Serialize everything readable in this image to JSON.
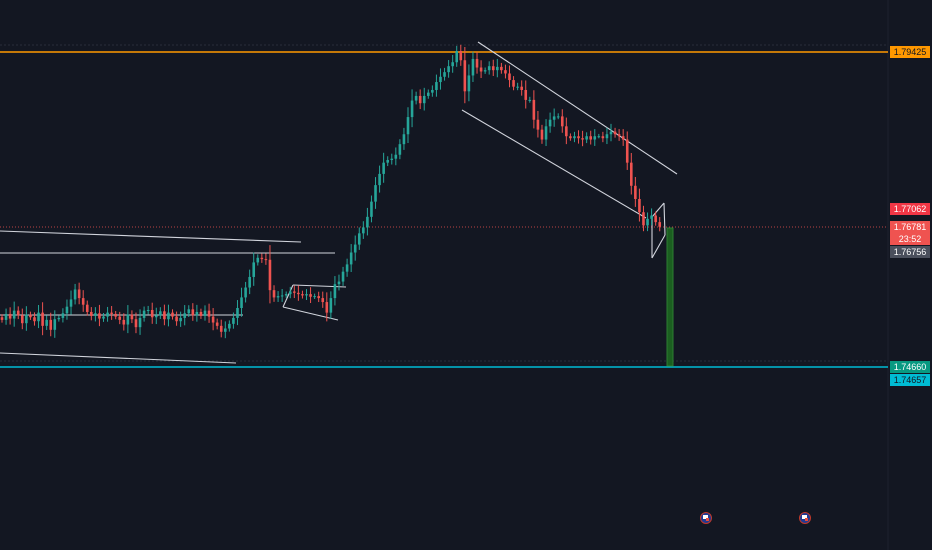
{
  "chart_data": {
    "type": "candlestick",
    "symbol_note": "",
    "ylim": [
      1.7385,
      1.7965
    ],
    "colors": {
      "background": "#131722",
      "up": "#26a69a",
      "down": "#ef5350",
      "resistance": "#ff9800",
      "support": "#00bcd4",
      "trendline": "#ffffff",
      "current_line": "#ef5350",
      "target_bar": "#1b5e20"
    },
    "levels": {
      "resistance": 1.79425,
      "support": 1.74657,
      "target": 1.7466,
      "prev_level": 1.77062,
      "current": 1.76781,
      "low_marker": 1.76756
    },
    "price_labels": [
      {
        "id": "resistance",
        "value": "1.79425",
        "bg": "#ff9800",
        "color": "#131722"
      },
      {
        "id": "prev",
        "value": "1.77062",
        "bg": "#f23645",
        "color": "#ffffff"
      },
      {
        "id": "current",
        "value": "1.76781",
        "sub": "23:52",
        "bg": "#ef5350",
        "color": "#ffffff"
      },
      {
        "id": "low",
        "value": "1.76756",
        "bg": "#4a4f5c",
        "color": "#ffffff"
      },
      {
        "id": "target",
        "value": "1.74660",
        "bg": "#089981",
        "color": "#ffffff"
      },
      {
        "id": "support",
        "value": "1.74657",
        "bg": "#00bcd4",
        "color": "#131722"
      }
    ],
    "closes": [
      1.7537,
      1.7546,
      1.7539,
      1.7551,
      1.7544,
      1.7532,
      1.7545,
      1.7541,
      1.7535,
      1.7548,
      1.7528,
      1.7537,
      1.7522,
      1.7538,
      1.754,
      1.7547,
      1.7557,
      1.7568,
      1.7583,
      1.757,
      1.756,
      1.7549,
      1.7543,
      1.7547,
      1.7539,
      1.7542,
      1.7548,
      1.7546,
      1.7542,
      1.7537,
      1.753,
      1.7545,
      1.7538,
      1.7526,
      1.754,
      1.7551,
      1.7552,
      1.7541,
      1.7544,
      1.755,
      1.7538,
      1.7548,
      1.7542,
      1.7535,
      1.754,
      1.7547,
      1.7553,
      1.7544,
      1.7549,
      1.7543,
      1.7551,
      1.7542,
      1.7533,
      1.7528,
      1.7519,
      1.7524,
      1.7531,
      1.754,
      1.7555,
      1.7571,
      1.7586,
      1.7602,
      1.7624,
      1.7631,
      1.7629,
      1.7628,
      1.7582,
      1.7571,
      1.7573,
      1.7574,
      1.7576,
      1.758,
      1.7578,
      1.7576,
      1.7574,
      1.7576,
      1.7572,
      1.7573,
      1.757,
      1.7564,
      1.7548,
      1.757,
      1.7591,
      1.7595,
      1.761,
      1.7621,
      1.7639,
      1.7651,
      1.7668,
      1.7677,
      1.7693,
      1.7716,
      1.7741,
      1.7758,
      1.7775,
      1.7779,
      1.7781,
      1.7787,
      1.7803,
      1.7818,
      1.7844,
      1.7869,
      1.7876,
      1.7865,
      1.7876,
      1.7881,
      1.7885,
      1.7897,
      1.7905,
      1.7912,
      1.7921,
      1.7927,
      1.7944,
      1.793,
      1.7883,
      1.7907,
      1.7932,
      1.7919,
      1.7913,
      1.7915,
      1.7921,
      1.7915,
      1.792,
      1.7915,
      1.791,
      1.79,
      1.789,
      1.789,
      1.7885,
      1.787,
      1.787,
      1.784,
      1.7825,
      1.781,
      1.783,
      1.784,
      1.7845,
      1.7845,
      1.783,
      1.7815,
      1.7812,
      1.7815,
      1.7812,
      1.781,
      1.7815,
      1.781,
      1.7815,
      1.7815,
      1.7812,
      1.7818,
      1.7822,
      1.7818,
      1.7815,
      1.781,
      1.7775,
      1.774,
      1.772,
      1.77,
      1.768,
      1.769,
      1.7695,
      1.7685,
      1.7678
    ]
  },
  "overlay": {
    "countdown": "23:52"
  }
}
